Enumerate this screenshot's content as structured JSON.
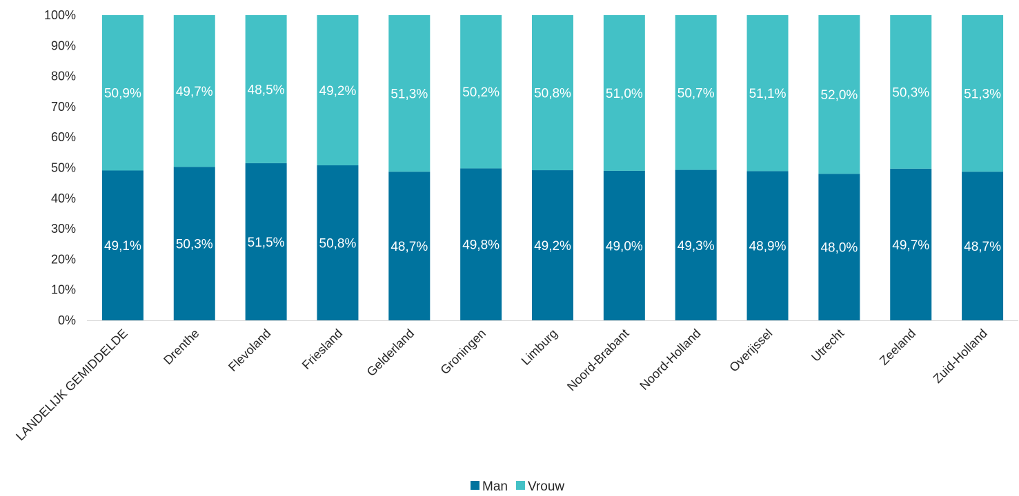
{
  "chart_data": {
    "type": "bar",
    "stacked": true,
    "percent": true,
    "title": "",
    "xlabel": "",
    "ylabel": "",
    "ylim": [
      0,
      100
    ],
    "y_ticks": [
      "0%",
      "10%",
      "20%",
      "30%",
      "40%",
      "50%",
      "60%",
      "70%",
      "80%",
      "90%",
      "100%"
    ],
    "grid": false,
    "legend_position": "bottom",
    "categories": [
      "LANDELIJK GEMIDDELDE",
      "Drenthe",
      "Flevoland",
      "Friesland",
      "Gelderland",
      "Groningen",
      "Limburg",
      "Noord-Brabant",
      "Noord-Holland",
      "Overijssel",
      "Utrecht",
      "Zeeland",
      "Zuid-Holland"
    ],
    "series": [
      {
        "name": "Man",
        "color": "#00739e",
        "values": [
          49.1,
          50.3,
          51.5,
          50.8,
          48.7,
          49.8,
          49.2,
          49.0,
          49.3,
          48.9,
          48.0,
          49.7,
          48.7
        ],
        "labels": [
          "49,1%",
          "50,3%",
          "51,5%",
          "50,8%",
          "48,7%",
          "49,8%",
          "49,2%",
          "49,0%",
          "49,3%",
          "48,9%",
          "48,0%",
          "49,7%",
          "48,7%"
        ]
      },
      {
        "name": "Vrouw",
        "color": "#43c1c6",
        "values": [
          50.9,
          49.7,
          48.5,
          49.2,
          51.3,
          50.2,
          50.8,
          51.0,
          50.7,
          51.1,
          52.0,
          50.3,
          51.3
        ],
        "labels": [
          "50,9%",
          "49,7%",
          "48,5%",
          "49,2%",
          "51,3%",
          "50,2%",
          "50,8%",
          "51,0%",
          "50,7%",
          "51,1%",
          "52,0%",
          "50,3%",
          "51,3%"
        ]
      }
    ]
  }
}
